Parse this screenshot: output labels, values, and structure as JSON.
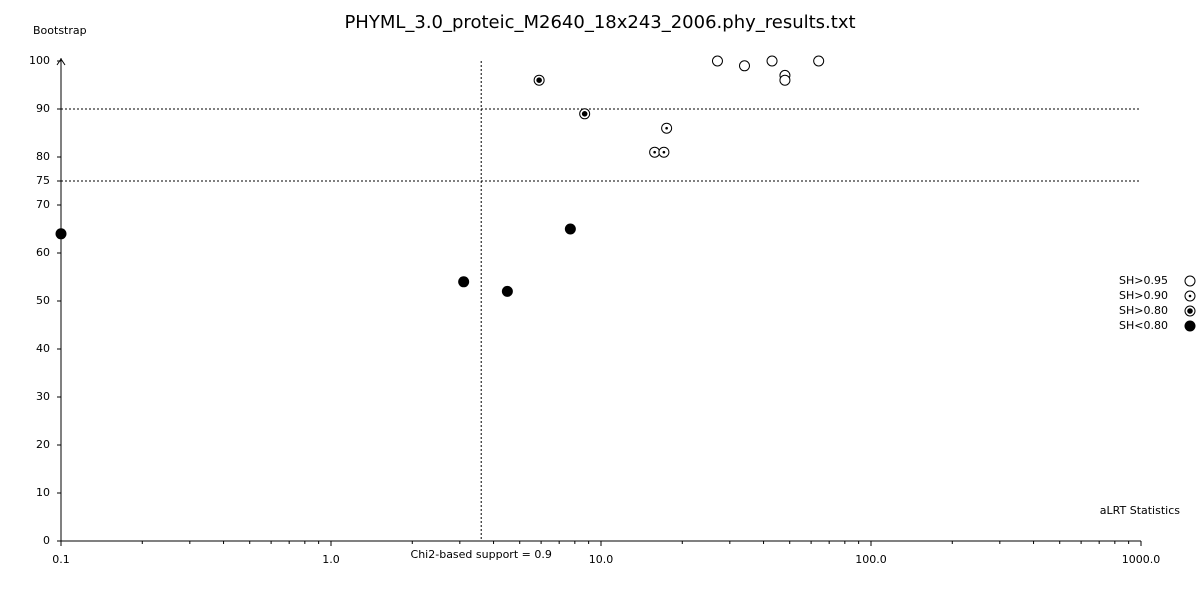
{
  "chart_data": {
    "type": "scatter",
    "title": "PHYML_3.0_proteic_M2640_18x243_2006.phy_results.txt",
    "y_label": "Bootstrap",
    "x_label": "aLRT Statistics",
    "x_scale": "log",
    "xlim": [
      0.1,
      1000
    ],
    "xticks": [
      {
        "value": 0.1,
        "label": "0.1"
      },
      {
        "value": 1,
        "label": "1.0"
      },
      {
        "value": 10,
        "label": "10.0"
      },
      {
        "value": 100,
        "label": "100.0"
      },
      {
        "value": 1000,
        "label": "1000.0"
      }
    ],
    "ylim": [
      0,
      100
    ],
    "yticks": [
      0,
      10,
      20,
      30,
      40,
      50,
      60,
      70,
      75,
      80,
      90,
      100
    ],
    "hlines": [
      90,
      75
    ],
    "vline": {
      "value": 3.6,
      "label": "Chi2-based support = 0.9"
    },
    "legend": "right",
    "series": [
      {
        "name": "SH>0.95",
        "color": "#000000",
        "marker": "open",
        "x": [
          27,
          34,
          43,
          48,
          48,
          64
        ],
        "values": [
          100,
          99,
          100,
          97,
          96,
          100
        ]
      },
      {
        "name": "SH>0.90",
        "color": "#000000",
        "marker": "ring-dot",
        "x": [
          17.5,
          15.8,
          17.1
        ],
        "values": [
          86,
          81,
          81
        ]
      },
      {
        "name": "SH>0.80",
        "color": "#000000",
        "marker": "ring-bigdot",
        "x": [
          5.9,
          8.7
        ],
        "values": [
          96,
          89
        ]
      },
      {
        "name": "SH<0.80",
        "color": "#000000",
        "marker": "filled",
        "x": [
          0.1,
          3.1,
          4.5,
          7.7
        ],
        "values": [
          64,
          54,
          52,
          65
        ]
      }
    ]
  }
}
